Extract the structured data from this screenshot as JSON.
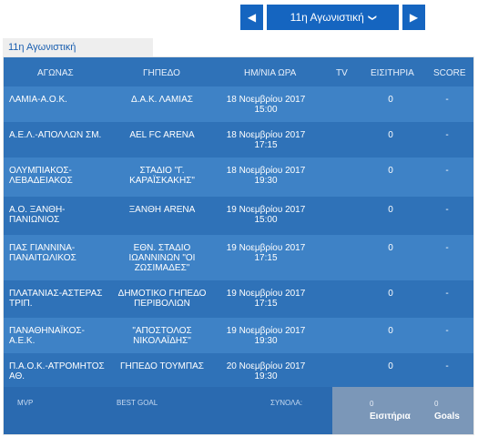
{
  "nav": {
    "prev_icon": "◀",
    "next_icon": "▶",
    "selected_round": "11η Αγωνιστική",
    "chevron_icon": "❯"
  },
  "tab_label": "11η Αγωνιστική",
  "columns": [
    "ΑΓΩΝΑΣ",
    "ΓΗΠΕΔΟ",
    "ΗΜ/ΝΙΑ ΩΡΑ",
    "TV",
    "ΕΙΣΙΤΗΡΙΑ",
    "SCORE"
  ],
  "matches": [
    {
      "game": "ΛΑΜΙΑ-Α.Ο.Κ.",
      "stadium": "Δ.Α.Κ. ΛΑΜΙΑΣ",
      "date": "18 Νοεμβρίου 2017",
      "time": "15:00",
      "tv": "",
      "tickets": "0",
      "score": "-"
    },
    {
      "game": "Α.Ε.Λ.-ΑΠΟΛΛΩΝ ΣΜ.",
      "stadium": "AEL FC ARENA",
      "date": "18 Νοεμβρίου 2017",
      "time": "17:15",
      "tv": "",
      "tickets": "0",
      "score": "-"
    },
    {
      "game": "ΟΛΥΜΠΙΑΚΟΣ-ΛΕΒΑΔΕΙΑΚΟΣ",
      "stadium": "ΣΤΑΔΙΟ \"Γ. ΚΑΡΑΪΣΚΑΚΗΣ\"",
      "date": "18 Νοεμβρίου 2017",
      "time": "19:30",
      "tv": "",
      "tickets": "0",
      "score": "-"
    },
    {
      "game": "Α.Ο. ΞΑΝΘΗ-ΠΑΝΙΩΝΙΟΣ",
      "stadium": "ΞΑΝΘΗ ARENA",
      "date": "19 Νοεμβρίου 2017",
      "time": "15:00",
      "tv": "",
      "tickets": "0",
      "score": "-"
    },
    {
      "game": "ΠΑΣ ΓΙΑΝΝΙΝΑ-ΠΑΝΑΙΤΩΛΙΚΟΣ",
      "stadium": "ΕΘΝ. ΣΤΑΔΙΟ ΙΩΑΝΝΙΝΩΝ \"ΟΙ ΖΩΣΙΜΑΔΕΣ\"",
      "date": "19 Νοεμβρίου 2017",
      "time": "17:15",
      "tv": "",
      "tickets": "0",
      "score": "-"
    },
    {
      "game": "ΠΛΑΤΑΝΙΑΣ-ΑΣΤΕΡΑΣ ΤΡΙΠ.",
      "stadium": "ΔΗΜΟΤΙΚΟ ΓΗΠΕΔΟ ΠΕΡΙΒΟΛΙΩΝ",
      "date": "19 Νοεμβρίου 2017",
      "time": "17:15",
      "tv": "",
      "tickets": "0",
      "score": "-"
    },
    {
      "game": "ΠΑΝΑΘΗΝΑΪΚΟΣ-Α.Ε.Κ.",
      "stadium": "\"ΑΠΟΣΤΟΛΟΣ ΝΙΚΟΛΑΪΔΗΣ\"",
      "date": "19 Νοεμβρίου 2017",
      "time": "19:30",
      "tv": "",
      "tickets": "0",
      "score": "-"
    },
    {
      "game": "Π.Α.Ο.Κ.-ΑΤΡΟΜΗΤΟΣ ΑΘ.",
      "stadium": "ΓΗΠΕΔΟ ΤΟΥΜΠΑΣ",
      "date": "20 Νοεμβρίου 2017",
      "time": "19:30",
      "tv": "",
      "tickets": "0",
      "score": "-"
    }
  ],
  "footer": {
    "mvp": "MVP",
    "best_goal": "BEST GOAL",
    "totals": "ΣΥΝΟΛΑ:",
    "tickets_value": "0",
    "tickets_label": "Εισιτήρια",
    "goals_value": "0",
    "goals_label": "Goals"
  }
}
